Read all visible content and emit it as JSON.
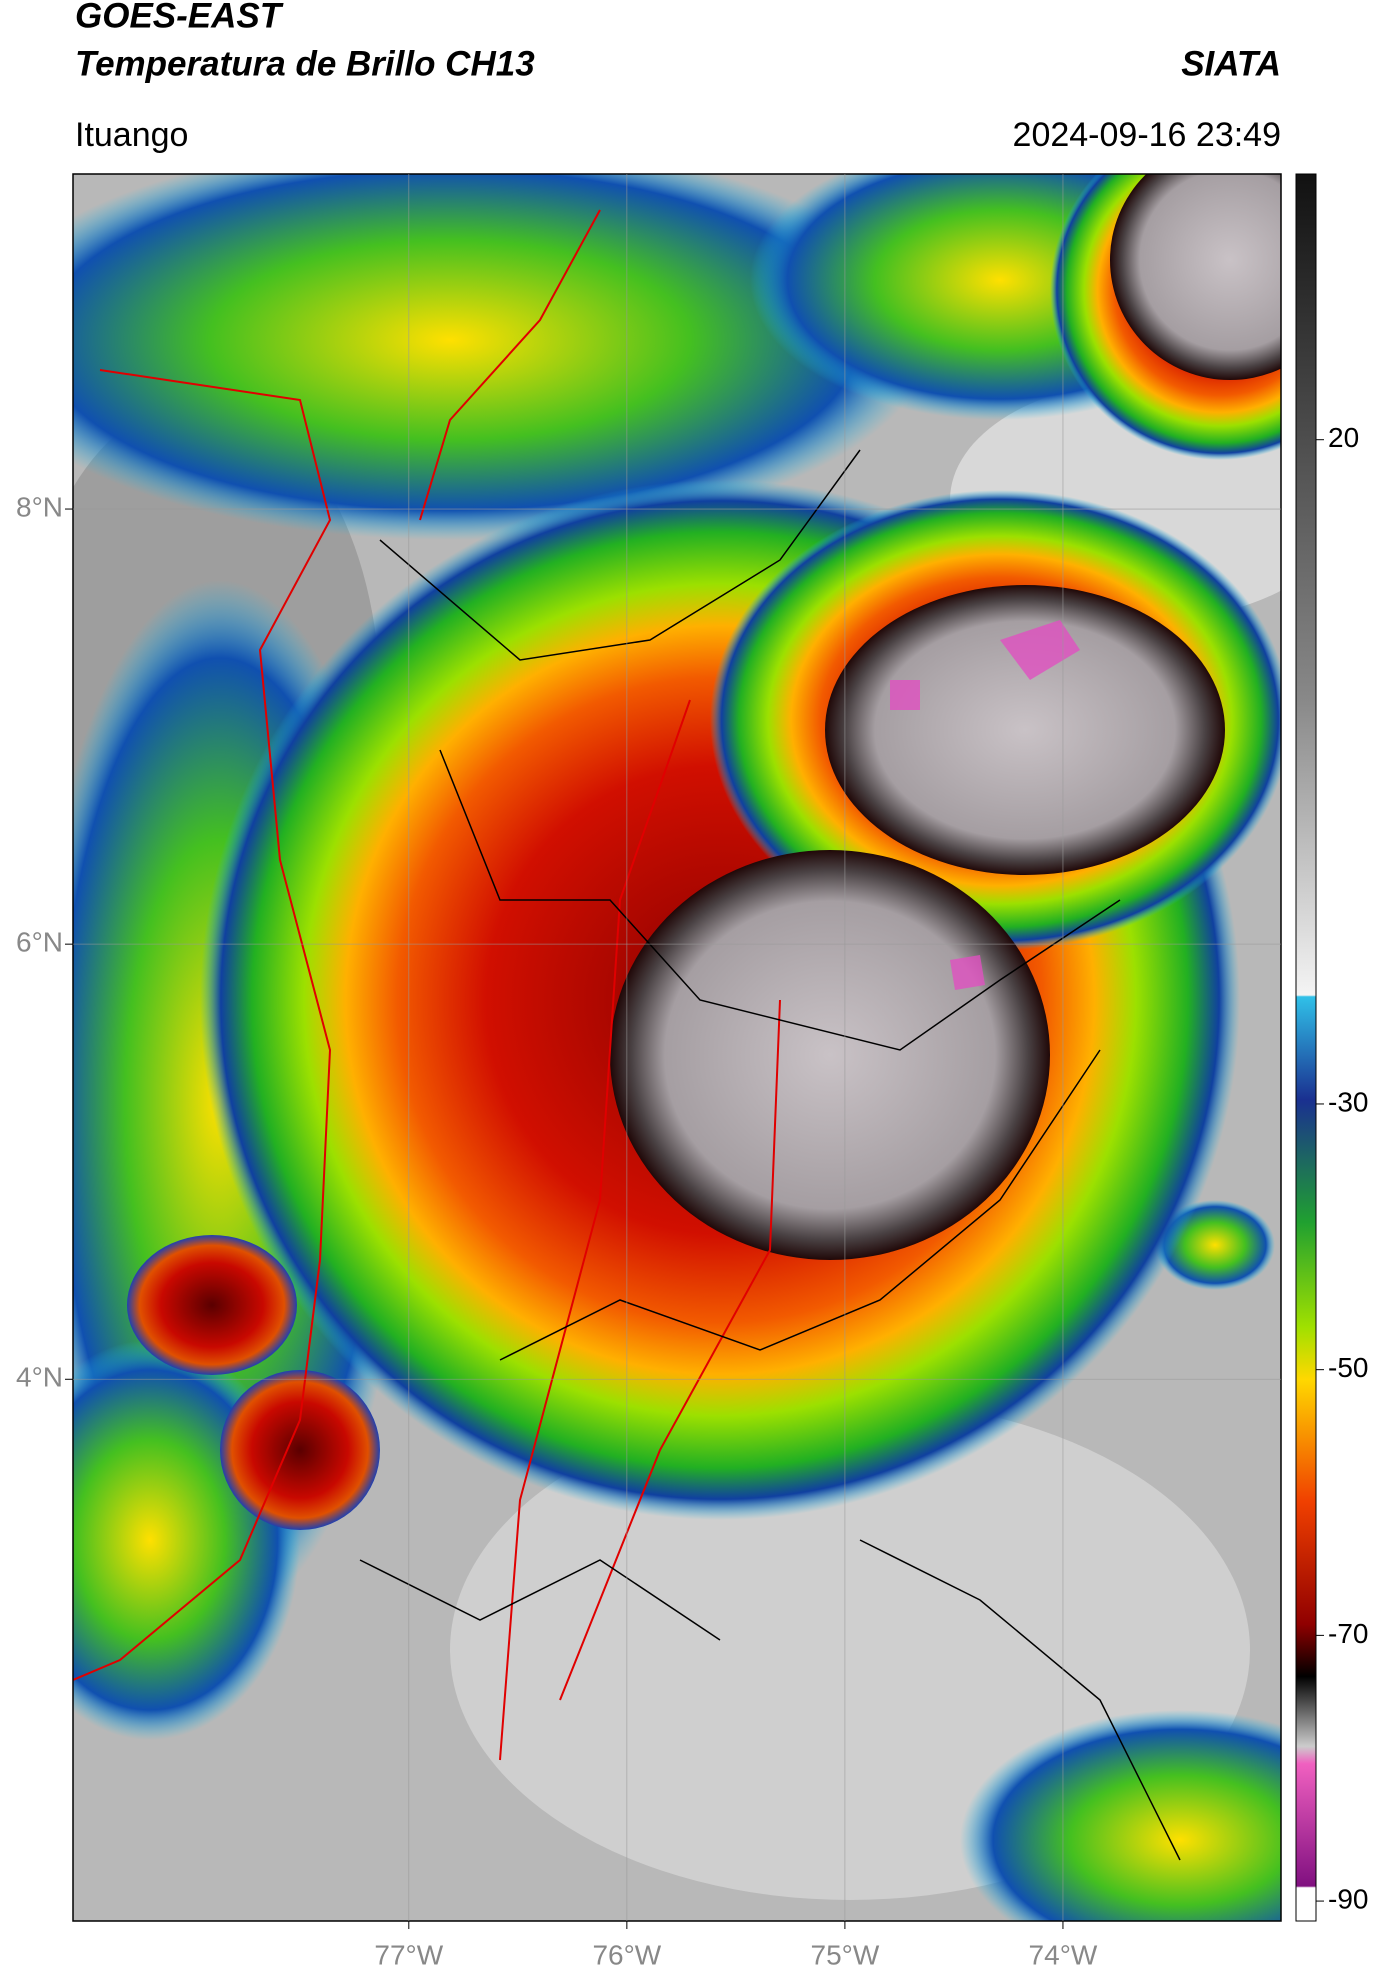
{
  "chart_data": {
    "type": "map",
    "title": "GOES-EAST",
    "subtitle": "Temperatura de Brillo CH13",
    "source": "SIATA",
    "location": "Ituango",
    "datetime": "2024-09-16 23:49",
    "xlim": [
      -78.54,
      -73.0
    ],
    "ylim": [
      1.51,
      9.54
    ],
    "xticks": [
      {
        "value": -77,
        "label": "77°W"
      },
      {
        "value": -76,
        "label": "76°W"
      },
      {
        "value": -75,
        "label": "75°W"
      },
      {
        "value": -74,
        "label": "74°W"
      }
    ],
    "yticks": [
      {
        "value": 8,
        "label": "8°N"
      },
      {
        "value": 6,
        "label": "6°N"
      },
      {
        "value": 4,
        "label": "4°N"
      }
    ],
    "grid": true,
    "colorbar": {
      "lim": [
        -91.5,
        40
      ],
      "ticks": [
        20,
        -30,
        -50,
        -70,
        -90
      ]
    }
  }
}
